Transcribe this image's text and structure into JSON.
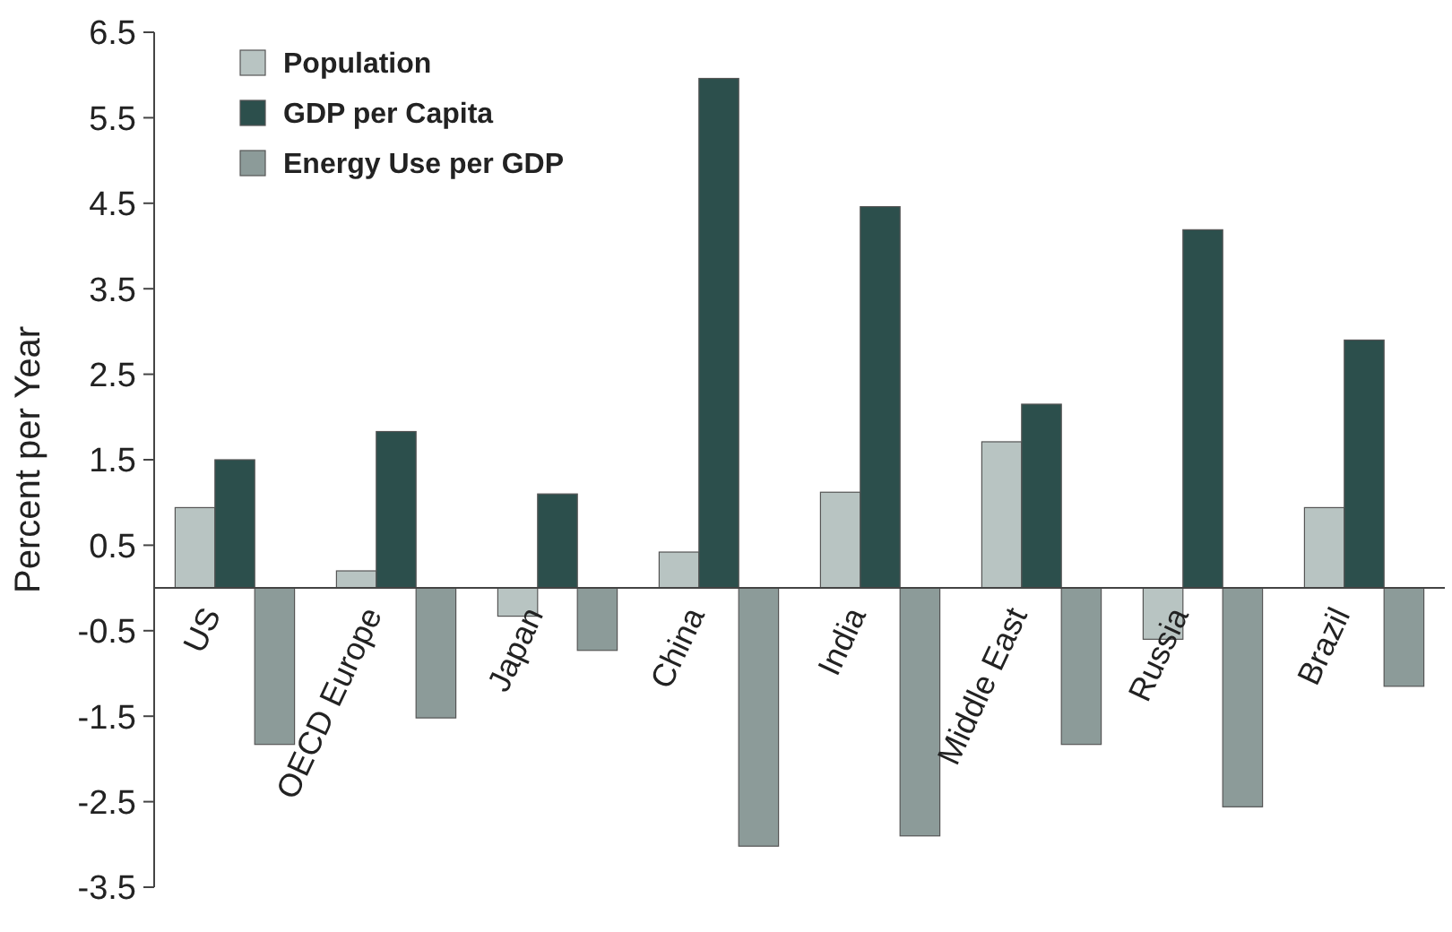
{
  "chart_data": {
    "type": "bar",
    "ylabel": "Percent per Year",
    "categories": [
      "US",
      "OECD Europe",
      "Japan",
      "China",
      "India",
      "Middle East",
      "Russia",
      "Brazil"
    ],
    "series": [
      {
        "name": "Population",
        "color": "#b8c4c2",
        "values": [
          0.94,
          0.2,
          -0.33,
          0.42,
          1.12,
          1.71,
          -0.6,
          0.94
        ]
      },
      {
        "name": "GDP per Capita",
        "color": "#2c4f4c",
        "values": [
          1.5,
          1.83,
          1.1,
          5.96,
          4.46,
          2.15,
          4.19,
          2.9
        ]
      },
      {
        "name": "Energy Use per GDP",
        "color": "#8c9b99",
        "values": [
          -1.83,
          -1.52,
          -0.73,
          -3.02,
          -2.9,
          -1.83,
          -2.56,
          -1.15
        ]
      }
    ],
    "ylim": [
      -3.5,
      6.5
    ],
    "yticks": [
      6.5,
      5.5,
      4.5,
      3.5,
      2.5,
      1.5,
      0.5,
      -0.5,
      -1.5,
      -2.5,
      -3.5
    ],
    "grid": false,
    "legend": "top left"
  }
}
